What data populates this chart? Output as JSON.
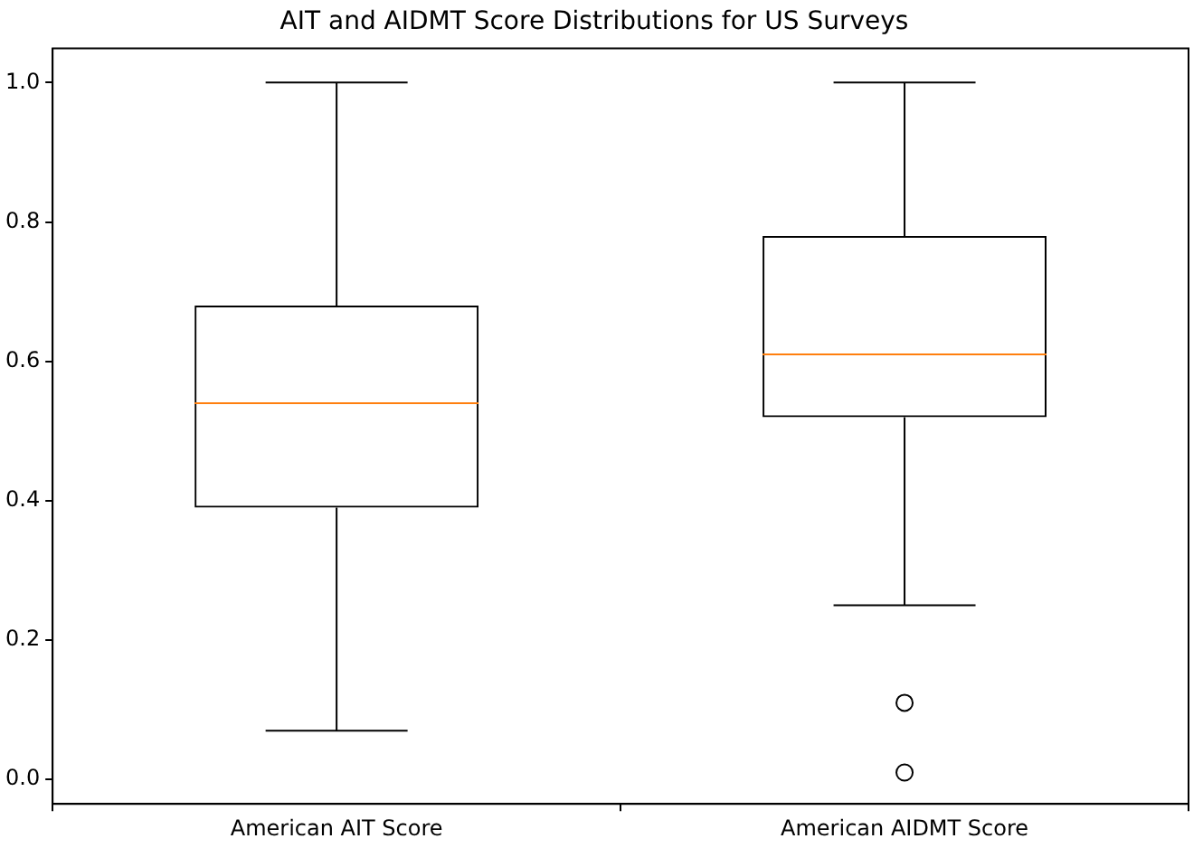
{
  "chart_data": {
    "type": "box",
    "title": "AIT and AIDMT Score Distributions for US Surveys",
    "categories": [
      "American AIT Score",
      "American AIDMT Score"
    ],
    "boxes": [
      {
        "low": 0.07,
        "q1": 0.39,
        "median": 0.54,
        "q3": 0.68,
        "high": 1.0
      },
      {
        "low": 0.25,
        "q1": 0.52,
        "median": 0.61,
        "q3": 0.78,
        "high": 1.0,
        "outliers": [
          0.11,
          0.01
        ]
      }
    ],
    "color": "#000000",
    "ylim": [
      -0.035,
      1.049
    ],
    "yticks": [
      {
        "value": 0,
        "label": "0.0"
      },
      {
        "value": 0.2,
        "label": "0.2"
      },
      {
        "value": 0.4,
        "label": "0.4"
      },
      {
        "value": 0.6,
        "label": "0.6"
      },
      {
        "value": 0.8,
        "label": "0.8"
      },
      {
        "value": 1,
        "label": "1.0"
      }
    ],
    "grid": false
  }
}
